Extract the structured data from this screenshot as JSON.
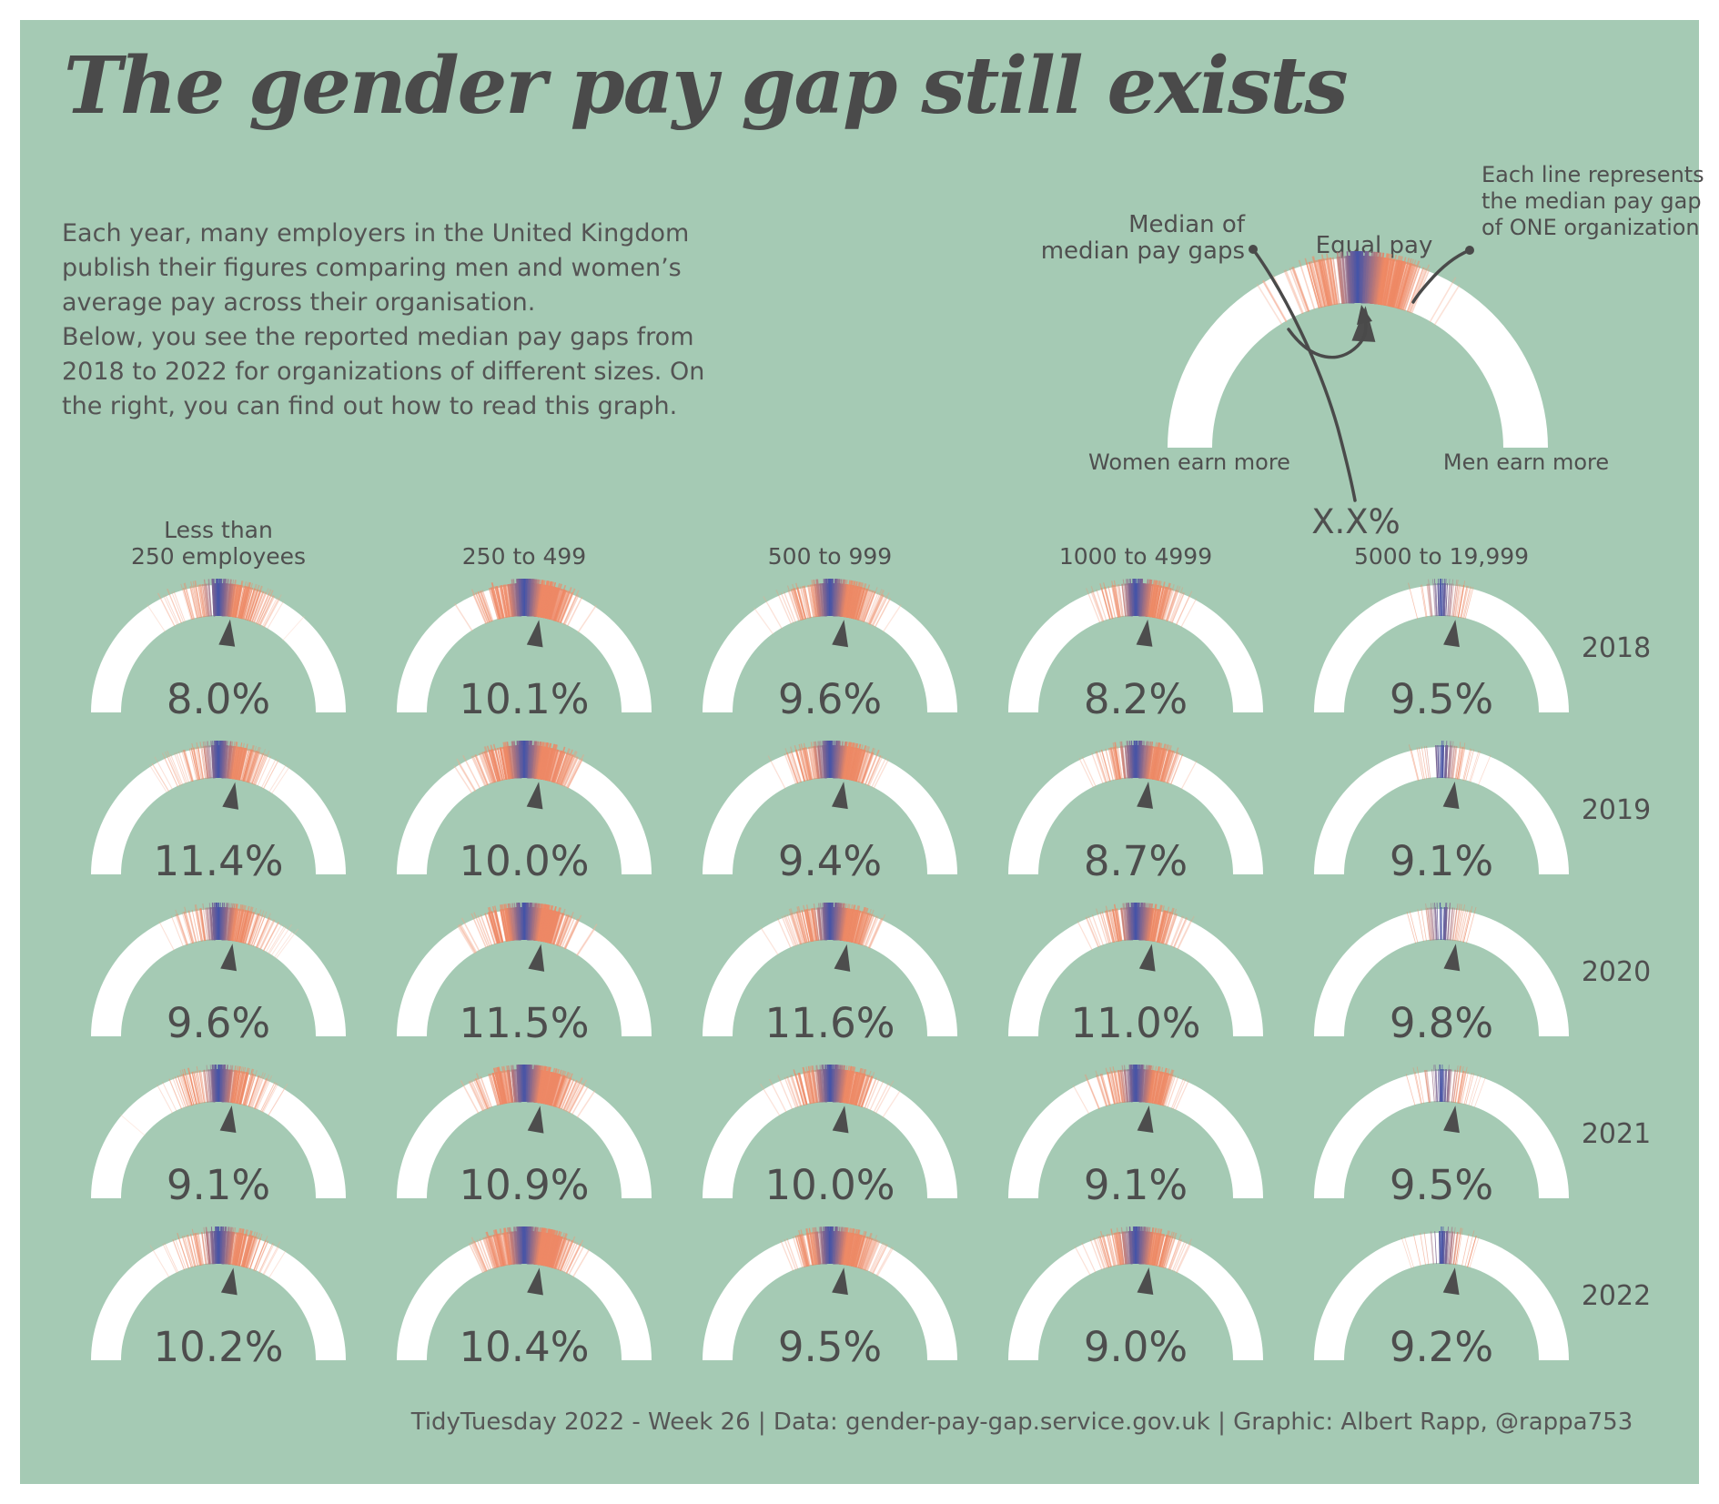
{
  "title": "The gender pay gap still exists",
  "intro": "Each year, many employers in the United Kingdom\npublish their figures comparing men and women’s\naverage pay across their organisation.\nBelow, you see the reported median pay gaps from\n2018 to 2022 for organizations of different sizes. On\nthe right, you can find out how to read this graph.",
  "legend": {
    "median_label": "Median of\nmedian pay gaps",
    "equal_label": "Equal pay",
    "each_line_label": "Each line represents\nthe median pay gap\nof ONE organization",
    "women_label": "Women earn more",
    "men_label": "Men earn more",
    "value_placeholder": "X.X%"
  },
  "footer": "TidyTuesday 2022 - Week 26 | Data: gender-pay-gap.service.gov.uk | Graphic: Albert Rapp, @rappa753",
  "chart_data": {
    "type": "gauge-grid",
    "title": "Reported median gender pay gaps, UK organisations, by organisation size and year",
    "unit": "%",
    "columns": [
      "Less than\n250 employees",
      "250 to 499",
      "500 to 999",
      "1000 to 4999",
      "5000 to 19,999"
    ],
    "rows": [
      "2018",
      "2019",
      "2020",
      "2021",
      "2022"
    ],
    "series": [
      {
        "year": "2018",
        "values": [
          8.0,
          10.1,
          9.6,
          8.2,
          9.5
        ],
        "labels": [
          "8.0%",
          "10.1%",
          "9.6%",
          "8.2%",
          "9.5%"
        ]
      },
      {
        "year": "2019",
        "values": [
          11.4,
          10.0,
          9.4,
          8.7,
          9.1
        ],
        "labels": [
          "11.4%",
          "10.0%",
          "9.4%",
          "8.7%",
          "9.1%"
        ]
      },
      {
        "year": "2020",
        "values": [
          9.6,
          11.5,
          11.6,
          11.0,
          9.8
        ],
        "labels": [
          "9.6%",
          "11.5%",
          "11.6%",
          "11.0%",
          "9.8%"
        ]
      },
      {
        "year": "2021",
        "values": [
          9.1,
          10.9,
          10.0,
          9.1,
          9.5
        ],
        "labels": [
          "9.1%",
          "10.9%",
          "10.0%",
          "9.1%",
          "9.5%"
        ]
      },
      {
        "year": "2022",
        "values": [
          10.2,
          10.4,
          9.5,
          9.0,
          9.2
        ],
        "labels": [
          "10.2%",
          "10.4%",
          "9.5%",
          "9.0%",
          "9.2%"
        ]
      }
    ],
    "gauge_semantics": {
      "left_end": "Women earn more",
      "top_center": "Equal pay",
      "right_end": "Men earn more",
      "marker": "Median of median pay gaps",
      "tick": "Each line is the median pay gap of one organization"
    },
    "layout_hints": {
      "tick_density_by_column": [
        340,
        520,
        470,
        330,
        64
      ]
    },
    "colors": {
      "panel": "#a5cab4",
      "ring": "#ffffff",
      "marker": "#4d4d4d",
      "tick_zero": "#4353a8",
      "tick_far": "#ee8965",
      "text": "#4f4f4f"
    }
  }
}
